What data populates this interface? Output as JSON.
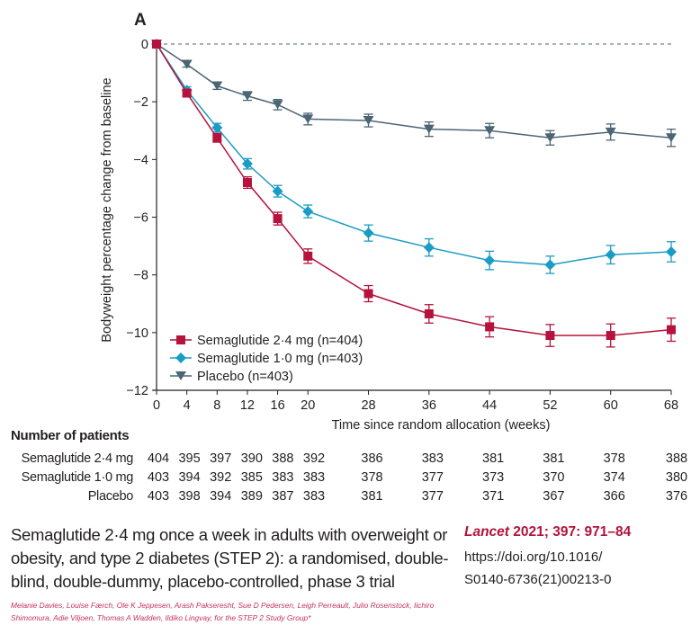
{
  "panel_label": "A",
  "chart_data": {
    "type": "line",
    "title": "",
    "xlabel": "Time since random allocation (weeks)",
    "ylabel": "Bodyweight percentage change from baseline",
    "x": [
      0,
      4,
      8,
      12,
      16,
      20,
      28,
      36,
      44,
      52,
      60,
      68
    ],
    "xticks": [
      "0",
      "4",
      "8",
      "12",
      "16",
      "20",
      "28",
      "36",
      "44",
      "52",
      "60",
      "68"
    ],
    "yticks": [
      "0",
      "−2",
      "−4",
      "−6",
      "−8",
      "−10",
      "−12"
    ],
    "ytick_values": [
      0,
      -2,
      -4,
      -6,
      -8,
      -10,
      -12
    ],
    "xlim": [
      0,
      68
    ],
    "ylim": [
      -12,
      0
    ],
    "reference_line": {
      "y": 0,
      "style": "dashed"
    },
    "legend_position": "bottom-left",
    "series": [
      {
        "name": "Semaglutide 2·4 mg (n=404)",
        "marker": "square",
        "color": "#b5123c",
        "values": [
          0,
          -1.7,
          -3.25,
          -4.8,
          -6.05,
          -7.35,
          -8.65,
          -9.35,
          -9.8,
          -10.1,
          -10.1,
          -9.9
        ],
        "error": [
          0,
          0.12,
          0.15,
          0.2,
          0.22,
          0.25,
          0.28,
          0.32,
          0.35,
          0.38,
          0.4,
          0.4
        ]
      },
      {
        "name": "Semaglutide 1·0 mg (n=403)",
        "marker": "diamond",
        "color": "#1a9cc4",
        "values": [
          0,
          -1.6,
          -2.9,
          -4.15,
          -5.1,
          -5.8,
          -6.55,
          -7.05,
          -7.5,
          -7.65,
          -7.3,
          -7.2
        ],
        "error": [
          0,
          0.12,
          0.15,
          0.18,
          0.2,
          0.22,
          0.28,
          0.3,
          0.32,
          0.3,
          0.32,
          0.35
        ]
      },
      {
        "name": "Placebo (n=403)",
        "marker": "triangle-down",
        "color": "#4b6573",
        "values": [
          0,
          -0.7,
          -1.45,
          -1.8,
          -2.1,
          -2.6,
          -2.65,
          -2.95,
          -3.0,
          -3.25,
          -3.05,
          -3.25
        ],
        "error": [
          0,
          0.1,
          0.12,
          0.15,
          0.18,
          0.2,
          0.22,
          0.25,
          0.25,
          0.25,
          0.28,
          0.3
        ]
      }
    ]
  },
  "patients": {
    "title": "Number of patients",
    "rows": [
      {
        "label": "Semaglutide 2·4 mg",
        "values": [
          "404",
          "395",
          "397",
          "390",
          "388",
          "392",
          "386",
          "383",
          "381",
          "381",
          "378",
          "388"
        ]
      },
      {
        "label": "Semaglutide 1·0 mg",
        "values": [
          "403",
          "394",
          "392",
          "385",
          "383",
          "383",
          "378",
          "377",
          "373",
          "370",
          "374",
          "380"
        ]
      },
      {
        "label": "Placebo",
        "values": [
          "403",
          "398",
          "394",
          "389",
          "387",
          "383",
          "381",
          "377",
          "371",
          "367",
          "366",
          "376"
        ]
      }
    ]
  },
  "article": {
    "title": "Semaglutide 2·4 mg once a week in adults with overweight or obesity, and type 2 diabetes (STEP 2): a randomised, double-blind, double-dummy, placebo-controlled, phase 3 trial",
    "journal_name": "Lancet",
    "journal_ref": " 2021; 397: 971–84",
    "doi_line1": "https://doi.org/10.1016/",
    "doi_line2": "S0140-6736(21)00213-0",
    "authors": "Melanie Davies, Louise Færch, Ole K Jeppesen, Arash Pakseresht, Sue D Pedersen, Leigh Perreault, Julio Rosenstock, Iichiro Shimomura, Adie Viljoen, Thomas A Wadden, Ildiko Lingvay, for the STEP 2 Study Group*"
  }
}
